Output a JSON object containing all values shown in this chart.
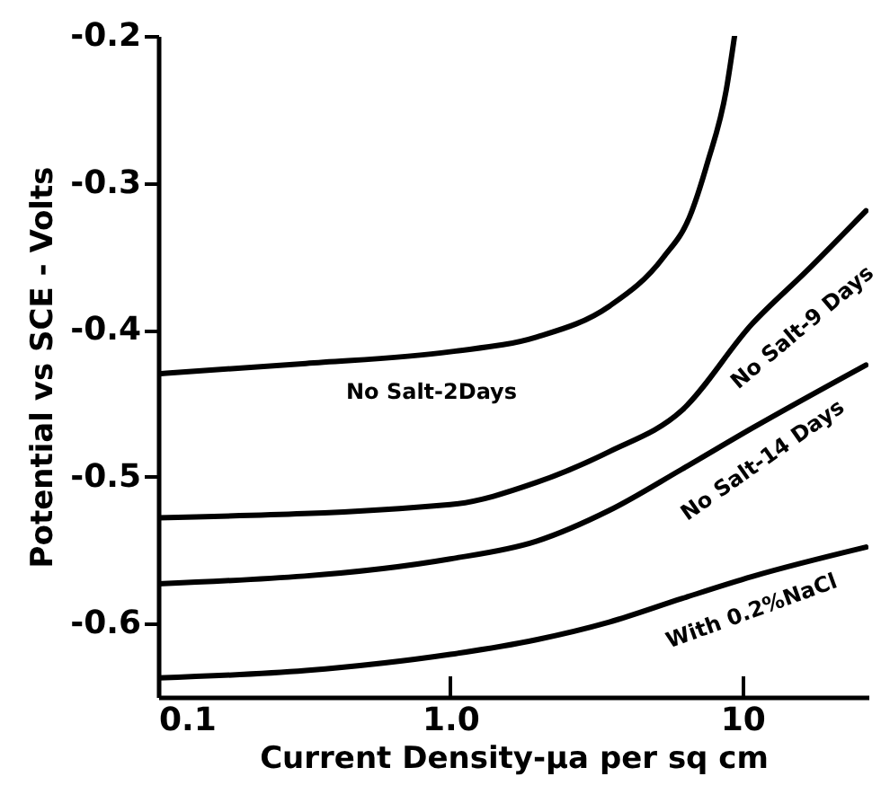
{
  "chart_data": {
    "type": "line",
    "xlabel": "Current Density-µa per sq cm",
    "ylabel": "Potential vs SCE - Volts",
    "log": "x",
    "xlim": [
      0.1,
      27
    ],
    "xticks": [
      0.1,
      {
        "value": 1,
        "label": "1.0"
      },
      10
    ],
    "ylim": [
      -0.65,
      -0.2
    ],
    "yticks": [
      -0.6,
      -0.5,
      -0.4,
      -0.3,
      -0.2
    ],
    "grid": false,
    "marker": "none",
    "line_style": "solid",
    "series": [
      {
        "name": "No Salt-2Days",
        "color": "#000000",
        "x": [
          0.1,
          0.32,
          1.0,
          1.97,
          3.5,
          5.35,
          6.6,
          7.6,
          8.8,
          9.4
        ],
        "values": [
          -0.43,
          -0.423,
          -0.415,
          -0.405,
          -0.384,
          -0.351,
          -0.323,
          -0.286,
          -0.237,
          -0.2
        ]
      },
      {
        "name": "No Salt-9 Days",
        "color": "#000000",
        "x": [
          0.1,
          1.0,
          1.97,
          3.5,
          6.2,
          10.8,
          16.6,
          26.5
        ],
        "values": [
          -0.528,
          -0.519,
          -0.504,
          -0.483,
          -0.455,
          -0.396,
          -0.36,
          -0.319
        ]
      },
      {
        "name": "No Salt-14 Days",
        "color": "#000000",
        "x": [
          0.1,
          1.0,
          1.97,
          3.5,
          6.2,
          10.8,
          26.5
        ],
        "values": [
          -0.573,
          -0.556,
          -0.544,
          -0.523,
          -0.495,
          -0.467,
          -0.424
        ]
      },
      {
        "name": "With 0.2%NaCl",
        "color": "#000000",
        "x": [
          0.1,
          0.32,
          1.0,
          1.97,
          3.5,
          6.2,
          10.8,
          26.5
        ],
        "values": [
          -0.637,
          -0.632,
          -0.621,
          -0.611,
          -0.599,
          -0.583,
          -0.568,
          -0.548
        ]
      }
    ]
  }
}
